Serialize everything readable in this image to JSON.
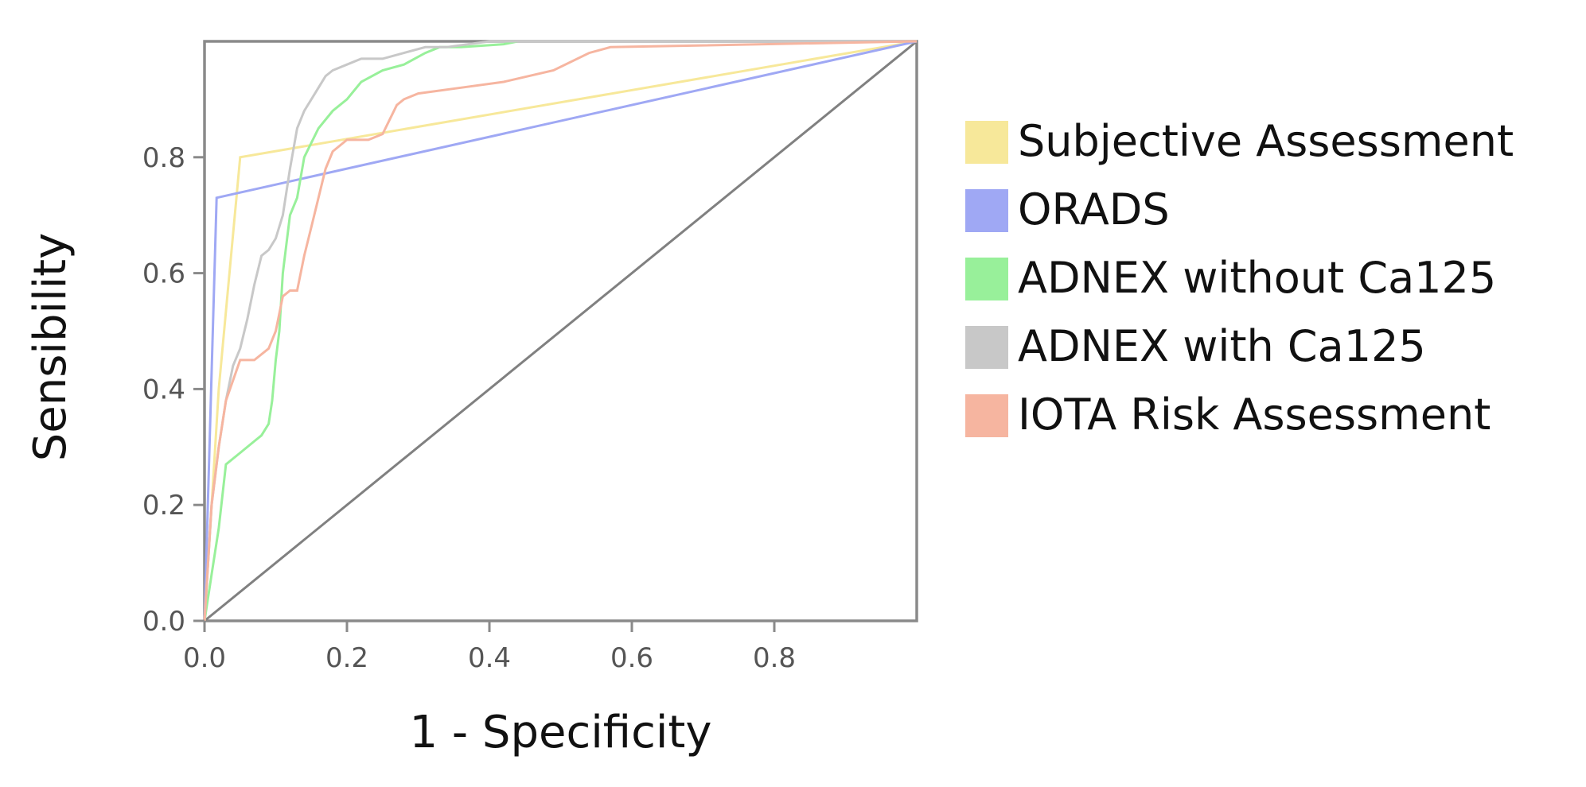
{
  "chart_data": {
    "type": "line",
    "title": "",
    "xlabel": "1 - Specificity",
    "ylabel": "Sensibility",
    "xlim": [
      0,
      1
    ],
    "ylim": [
      0,
      1
    ],
    "x_ticks": [
      "0.0",
      "0.2",
      "0.4",
      "0.6",
      "0.8"
    ],
    "y_ticks": [
      "0.0",
      "0.2",
      "0.4",
      "0.6",
      "0.8"
    ],
    "grid": false,
    "legend_position": "right",
    "reference_line": {
      "x": [
        0,
        1
      ],
      "y": [
        0,
        1
      ],
      "color": "#808080"
    },
    "series": [
      {
        "name": "Subjective Assessment",
        "color": "#F7E89A",
        "x": [
          0,
          0.02,
          0.05,
          1.0
        ],
        "y": [
          0,
          0.4,
          0.8,
          1.0
        ]
      },
      {
        "name": "ORADS",
        "color": "#9FA8F4",
        "x": [
          0,
          0.017,
          1.0
        ],
        "y": [
          0,
          0.73,
          1.0
        ]
      },
      {
        "name": "ADNEX without Ca125",
        "color": "#98F09A",
        "x": [
          0,
          0.01,
          0.02,
          0.03,
          0.05,
          0.07,
          0.08,
          0.09,
          0.095,
          0.1,
          0.105,
          0.11,
          0.12,
          0.13,
          0.14,
          0.16,
          0.18,
          0.2,
          0.22,
          0.25,
          0.28,
          0.31,
          0.33,
          0.36,
          0.42,
          0.44,
          1.0
        ],
        "y": [
          0,
          0.08,
          0.16,
          0.27,
          0.29,
          0.31,
          0.32,
          0.34,
          0.38,
          0.45,
          0.5,
          0.6,
          0.7,
          0.73,
          0.8,
          0.85,
          0.88,
          0.9,
          0.93,
          0.95,
          0.96,
          0.98,
          0.99,
          0.99,
          0.995,
          1.0,
          1.0
        ]
      },
      {
        "name": "ADNEX with Ca125",
        "color": "#C8C8C8",
        "x": [
          0,
          0.01,
          0.02,
          0.03,
          0.04,
          0.05,
          0.06,
          0.07,
          0.08,
          0.09,
          0.1,
          0.11,
          0.12,
          0.13,
          0.14,
          0.15,
          0.16,
          0.17,
          0.18,
          0.2,
          0.22,
          0.25,
          0.28,
          0.31,
          0.34,
          0.4,
          0.45,
          1.0
        ],
        "y": [
          0,
          0.2,
          0.3,
          0.38,
          0.44,
          0.47,
          0.52,
          0.58,
          0.63,
          0.64,
          0.66,
          0.7,
          0.78,
          0.85,
          0.88,
          0.9,
          0.92,
          0.94,
          0.95,
          0.96,
          0.97,
          0.97,
          0.98,
          0.99,
          0.99,
          1.0,
          1.0,
          1.0
        ]
      },
      {
        "name": "IOTA Risk Assessment",
        "color": "#F6B5A0",
        "x": [
          0,
          0.01,
          0.02,
          0.03,
          0.05,
          0.07,
          0.09,
          0.1,
          0.11,
          0.12,
          0.13,
          0.14,
          0.15,
          0.17,
          0.18,
          0.2,
          0.23,
          0.25,
          0.27,
          0.28,
          0.3,
          0.36,
          0.42,
          0.49,
          0.54,
          0.57,
          1.0
        ],
        "y": [
          0,
          0.2,
          0.3,
          0.38,
          0.45,
          0.45,
          0.47,
          0.5,
          0.56,
          0.57,
          0.57,
          0.63,
          0.68,
          0.78,
          0.81,
          0.83,
          0.83,
          0.84,
          0.89,
          0.9,
          0.91,
          0.92,
          0.93,
          0.95,
          0.98,
          0.99,
          1.0
        ]
      }
    ]
  }
}
